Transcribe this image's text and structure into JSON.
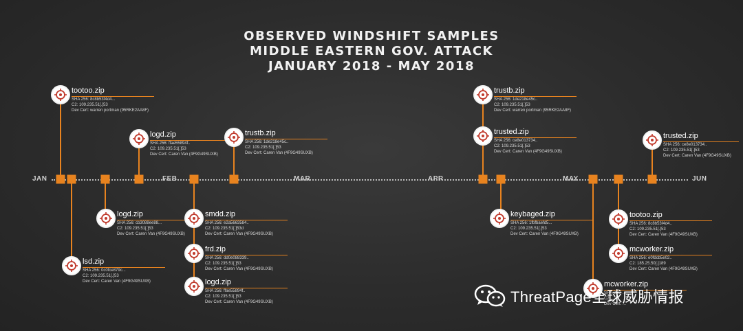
{
  "title": {
    "line1": "OBSERVED WINDSHIFT SAMPLES",
    "line2": "MIDDLE EASTERN GOV. ATTACK",
    "line3": "JANUARY 2018 - MAY 2018"
  },
  "months": [
    "JAN",
    "FEB",
    "MAR",
    "APR",
    "MAY",
    "JUN"
  ],
  "colors": {
    "accent": "#e8831f",
    "background": "#2c2c2c",
    "target_red": "#c0392b"
  },
  "samples": [
    {
      "name": "tootoo.zip",
      "sha": "SHA 256: 8c8b53f4d4...",
      "c2": "C2: 109.235.51[.]53",
      "cert": "Dev Cert: warren portman (95RKE2AA8F)"
    },
    {
      "name": "logd.zip",
      "sha": "SHA 256: ffae55894f..",
      "c2": "C2: 109.235.51[.]53",
      "cert": "Dev Cert: Caren Van (4F9G49SUXB)"
    },
    {
      "name": "trustb.zip",
      "sha": "SHA 256: 1de218e45c..",
      "c2": "C2: 109.235.51[.]53",
      "cert": "Dev Cert: Caren Van (4F9G49SUXB)"
    },
    {
      "name": "logd.zip",
      "sha": "SHA 256: cb3088ee88...",
      "c2": "C2: 109.235.51[.]53",
      "cert": "Dev Cert: Caren Van (4F9G49SUXB)"
    },
    {
      "name": "lsd.zip",
      "sha": "SHA 256: 0c0fce879c...",
      "c2": "C2: 109.235.51[.]53",
      "cert": "Dev Cert: Caren Van (4F9G49SUXB)"
    },
    {
      "name": "smdd.zip",
      "sha": "SHA 256: e2a5663584..",
      "c2": "C2: 109.235.51[.]53d",
      "cert": "Dev Cert: Caren Van (4F9G49SUXB)"
    },
    {
      "name": "frd.zip",
      "sha": "SHA 256: dd0e088339..",
      "c2": "C2: 109.235.51[.]53",
      "cert": "Dev Cert: Caren Van (4F9G49SUXB)"
    },
    {
      "name": "logd.zip",
      "sha": "SHA 256: ffae55894f..",
      "c2": "C2: 109.235.51[.]53",
      "cert": "Dev Cert: Caren Van (4F9G49SUXB)"
    },
    {
      "name": "trustb.zip",
      "sha": "SHA 256: 1de218e45c..",
      "c2": "C2: 109.235.51[.]53",
      "cert": "Dev Cert: warren portman (95RKE2AA8F)"
    },
    {
      "name": "trusted.zip",
      "sha": "SHA 256: ce8e013734..",
      "c2": "C2: 109.235.51[.]53",
      "cert": "Dev Cert: Caren Van (4F9G49SUXB)"
    },
    {
      "name": "keybaged.zip",
      "sha": "SHA 256: 1fbfbaefd5...",
      "c2": "C2: 109.235.51[.]53",
      "cert": "Dev Cert: Caren Van (4F9G49SUXB)"
    },
    {
      "name": "trusted.zip",
      "sha": "SHA 256: ce8e013734..",
      "c2": "C2: 109.235.51[.]53",
      "cert": "Dev Cert: Caren Van (4F9G49SUXB)"
    },
    {
      "name": "tootoo.zip",
      "sha": "SHA 256: 8c8b53f4d4..",
      "c2": "C2: 109.235.51[.]53",
      "cert": "Dev Cert: Caren Van (4F9G49SUXB)"
    },
    {
      "name": "mcworker.zip",
      "sha": "SHA 256: e0fdcb5e02..",
      "c2": "C2: 185.25.50[.]189",
      "cert": "Dev Cert: Caren Van (4F9G49SUXB)"
    },
    {
      "name": "mcworker.zip",
      "sha": "SHA 256: ...",
      "c2": "C2: ...",
      "cert": "Dev Cert: ..."
    }
  ],
  "watermark": {
    "text": "ThreatPage全球威胁情报",
    "icon": "wechat-icon"
  }
}
